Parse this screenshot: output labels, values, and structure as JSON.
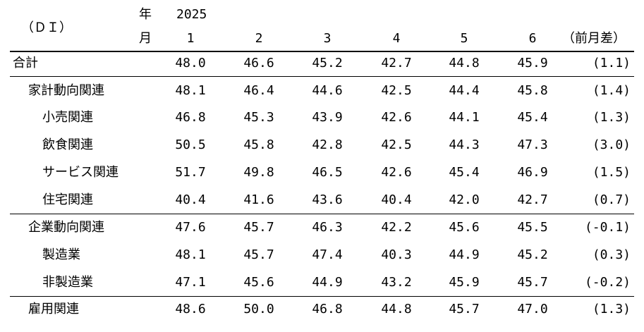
{
  "header": {
    "unit": "（ＤＩ）",
    "year_label": "年",
    "year": "2025",
    "month_label": "月",
    "months": [
      "1",
      "2",
      "3",
      "4",
      "5",
      "6"
    ],
    "diff_label": "（前月差）"
  },
  "rows": [
    {
      "label": "合計",
      "values": [
        "48.0",
        "46.6",
        "45.2",
        "42.7",
        "44.8",
        "45.9"
      ],
      "diff": "(1.1)"
    },
    {
      "label": "家計動向関連",
      "values": [
        "48.1",
        "46.4",
        "44.6",
        "42.5",
        "44.4",
        "45.8"
      ],
      "diff": "(1.4)"
    },
    {
      "label": "小売関連",
      "values": [
        "46.8",
        "45.3",
        "43.9",
        "42.6",
        "44.1",
        "45.4"
      ],
      "diff": "(1.3)"
    },
    {
      "label": "飲食関連",
      "values": [
        "50.5",
        "45.8",
        "42.8",
        "42.5",
        "44.3",
        "47.3"
      ],
      "diff": "(3.0)"
    },
    {
      "label": "サービス関連",
      "values": [
        "51.7",
        "49.8",
        "46.5",
        "42.6",
        "45.4",
        "46.9"
      ],
      "diff": "(1.5)"
    },
    {
      "label": "住宅関連",
      "values": [
        "40.4",
        "41.6",
        "43.6",
        "40.4",
        "42.0",
        "42.7"
      ],
      "diff": "(0.7)"
    },
    {
      "label": "企業動向関連",
      "values": [
        "47.6",
        "45.7",
        "46.3",
        "42.2",
        "45.6",
        "45.5"
      ],
      "diff": "(-0.1)"
    },
    {
      "label": "製造業",
      "values": [
        "48.1",
        "45.7",
        "47.4",
        "40.3",
        "44.9",
        "45.2"
      ],
      "diff": "(0.3)"
    },
    {
      "label": "非製造業",
      "values": [
        "47.1",
        "45.6",
        "44.9",
        "43.2",
        "45.9",
        "45.7"
      ],
      "diff": "(-0.2)"
    },
    {
      "label": "雇用関連",
      "values": [
        "48.6",
        "50.0",
        "46.8",
        "44.8",
        "45.7",
        "47.0"
      ],
      "diff": "(1.3)"
    }
  ]
}
